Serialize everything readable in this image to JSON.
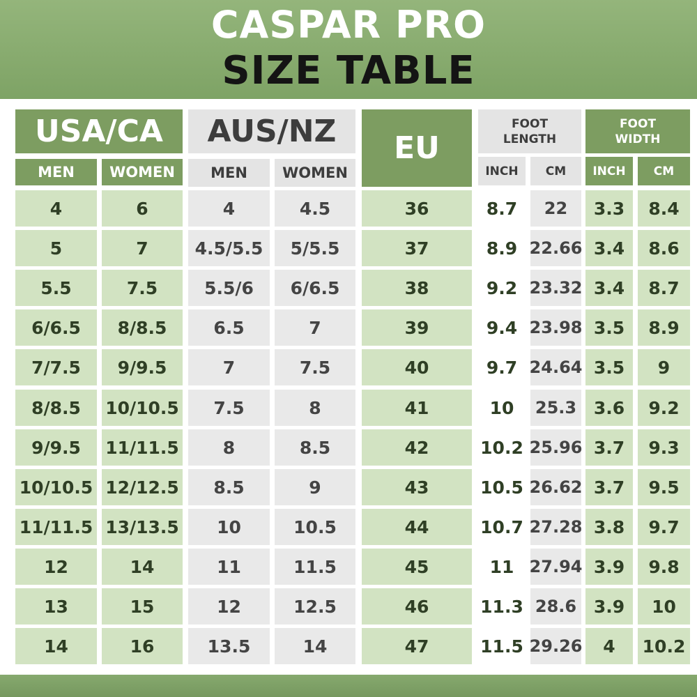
{
  "title_line1": "CASPAR PRO",
  "title_line2": "SIZE TABLE",
  "groups": {
    "usa": "USA/CA",
    "aus": "AUS/NZ",
    "eu": "EU",
    "foot_length": [
      "FOOT",
      "LENGTH"
    ],
    "foot_width": [
      "FOOT",
      "WIDTH"
    ]
  },
  "subheaders": {
    "usa_men": "MEN",
    "usa_women": "WOMEN",
    "aus_men": "MEN",
    "aus_women": "WOMEN",
    "length_inch": "INCH",
    "length_cm": "CM",
    "width_inch": "INCH",
    "width_cm": "CM"
  },
  "rows": [
    [
      "4",
      "6",
      "4",
      "4.5",
      "36",
      "8.7",
      "22",
      "3.3",
      "8.4"
    ],
    [
      "5",
      "7",
      "4.5/5.5",
      "5/5.5",
      "37",
      "8.9",
      "22.66",
      "3.4",
      "8.6"
    ],
    [
      "5.5",
      "7.5",
      "5.5/6",
      "6/6.5",
      "38",
      "9.2",
      "23.32",
      "3.4",
      "8.7"
    ],
    [
      "6/6.5",
      "8/8.5",
      "6.5",
      "7",
      "39",
      "9.4",
      "23.98",
      "3.5",
      "8.9"
    ],
    [
      "7/7.5",
      "9/9.5",
      "7",
      "7.5",
      "40",
      "9.7",
      "24.64",
      "3.5",
      "9"
    ],
    [
      "8/8.5",
      "10/10.5",
      "7.5",
      "8",
      "41",
      "10",
      "25.3",
      "3.6",
      "9.2"
    ],
    [
      "9/9.5",
      "11/11.5",
      "8",
      "8.5",
      "42",
      "10.2",
      "25.96",
      "3.7",
      "9.3"
    ],
    [
      "10/10.5",
      "12/12.5",
      "8.5",
      "9",
      "43",
      "10.5",
      "26.62",
      "3.7",
      "9.5"
    ],
    [
      "11/11.5",
      "13/13.5",
      "10",
      "10.5",
      "44",
      "10.7",
      "27.28",
      "3.8",
      "9.7"
    ],
    [
      "12",
      "14",
      "11",
      "11.5",
      "45",
      "11",
      "27.94",
      "3.9",
      "9.8"
    ],
    [
      "13",
      "15",
      "12",
      "12.5",
      "46",
      "11.3",
      "28.6",
      "3.9",
      "10"
    ],
    [
      "14",
      "16",
      "13.5",
      "14",
      "47",
      "11.5",
      "29.26",
      "4",
      "10.2"
    ]
  ],
  "colors": {
    "header_green": "#86a96e",
    "dark_green": "#7d9d61",
    "light_green": "#d2e3c2",
    "gray": "#e4e4e4",
    "text_green": "#2f3f25"
  }
}
